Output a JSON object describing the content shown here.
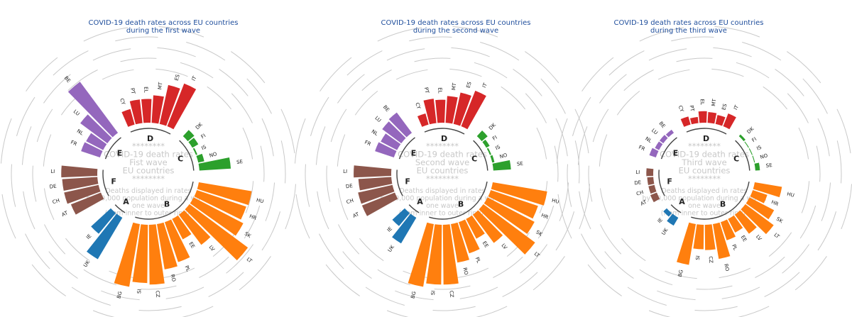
{
  "chart_data": [
    {
      "type": "radial-bar",
      "title_lines": [
        "COVID-19 death rates across EU countries",
        "during the first wave"
      ],
      "center_lines": [
        "********",
        "COVID-19 death rates",
        "Fist wave",
        "EU countries",
        "********"
      ],
      "note_lines": [
        "Deaths displayed in rates",
        "by 10,000 population during a wave,",
        "one wave",
        "(from inner to outer ring)."
      ],
      "groups": [
        {
          "name": "A",
          "color": "#1f77b4",
          "countries": [
            {
              "code": "UK",
              "value": 6.3
            },
            {
              "code": "IE",
              "value": 3.5
            }
          ]
        },
        {
          "name": "F",
          "color": "#8c564b",
          "countries": [
            {
              "code": "AT",
              "value": 4.2
            },
            {
              "code": "CH",
              "value": 4.6
            },
            {
              "code": "DE",
              "value": 4.6
            },
            {
              "code": "LI",
              "value": 4.7
            }
          ]
        },
        {
          "name": "E",
          "color": "#9467bd",
          "countries": [
            {
              "code": "FR",
              "value": 2.6
            },
            {
              "code": "NL",
              "value": 2.5
            },
            {
              "code": "LU",
              "value": 4.4
            },
            {
              "code": "BE",
              "value": 8.3
            }
          ]
        },
        {
          "name": "D",
          "color": "#d62728",
          "countries": [
            {
              "code": "CY",
              "value": 2.1
            },
            {
              "code": "PT",
              "value": 3.1
            },
            {
              "code": "EL",
              "value": 3.1
            },
            {
              "code": "MT",
              "value": 3.6
            },
            {
              "code": "ES",
              "value": 5.2
            },
            {
              "code": "IT",
              "value": 6.0
            }
          ]
        },
        {
          "name": "C",
          "color": "#2ca02c",
          "countries": [
            {
              "code": "DK",
              "value": 1.1
            },
            {
              "code": "FI",
              "value": 0.9
            },
            {
              "code": "IS",
              "value": 0.2
            },
            {
              "code": "NO",
              "value": 0.8
            },
            {
              "code": "SE",
              "value": 4.1
            }
          ]
        },
        {
          "name": "B",
          "color": "#ff7f0e",
          "countries": [
            {
              "code": "HU",
              "value": 7.0
            },
            {
              "code": "HR",
              "value": 6.8
            },
            {
              "code": "SK",
              "value": 7.3
            },
            {
              "code": "LT",
              "value": 9.5
            },
            {
              "code": "LV",
              "value": 4.9
            },
            {
              "code": "EE",
              "value": 3.0
            },
            {
              "code": "PL",
              "value": 5.5
            },
            {
              "code": "RO",
              "value": 6.0
            },
            {
              "code": "CZ",
              "value": 7.8
            },
            {
              "code": "SI",
              "value": 7.6
            },
            {
              "code": "BG",
              "value": 8.3
            }
          ]
        }
      ]
    },
    {
      "type": "radial-bar",
      "title_lines": [
        "COVID-19 death rates across EU countries",
        "during the second wave"
      ],
      "center_lines": [
        "********",
        "COVID-19 death rates",
        "Second wave",
        "EU countries",
        "********"
      ],
      "note_lines": [
        "Deaths displayed in rates",
        "by 10,000 population during a wave,",
        "one wave",
        "(from inner to outer ring)."
      ],
      "groups": [
        {
          "name": "A",
          "color": "#1f77b4",
          "countries": [
            {
              "code": "UK",
              "value": 3.9
            },
            {
              "code": "IE",
              "value": 2.2
            }
          ]
        },
        {
          "name": "F",
          "color": "#8c564b",
          "countries": [
            {
              "code": "AT",
              "value": 4.6
            },
            {
              "code": "CH",
              "value": 4.6
            },
            {
              "code": "DE",
              "value": 4.3
            },
            {
              "code": "LI",
              "value": 4.9
            }
          ]
        },
        {
          "name": "E",
          "color": "#9467bd",
          "countries": [
            {
              "code": "FR",
              "value": 2.6
            },
            {
              "code": "NL",
              "value": 2.4
            },
            {
              "code": "LU",
              "value": 3.1
            },
            {
              "code": "BE",
              "value": 3.3
            }
          ]
        },
        {
          "name": "D",
          "color": "#d62728",
          "countries": [
            {
              "code": "CY",
              "value": 1.5
            },
            {
              "code": "PT",
              "value": 3.2
            },
            {
              "code": "EL",
              "value": 3.0
            },
            {
              "code": "MT",
              "value": 3.5
            },
            {
              "code": "ES",
              "value": 4.2
            },
            {
              "code": "IT",
              "value": 5.0
            }
          ]
        },
        {
          "name": "C",
          "color": "#2ca02c",
          "countries": [
            {
              "code": "DK",
              "value": 1.0
            },
            {
              "code": "FI",
              "value": 0.5
            },
            {
              "code": "IS",
              "value": 0.2
            },
            {
              "code": "NO",
              "value": 0.3
            },
            {
              "code": "SE",
              "value": 2.3
            }
          ]
        },
        {
          "name": "B",
          "color": "#ff7f0e",
          "countries": [
            {
              "code": "HU",
              "value": 7.2
            },
            {
              "code": "HR",
              "value": 6.5
            },
            {
              "code": "SK",
              "value": 6.9
            },
            {
              "code": "LT",
              "value": 8.4
            },
            {
              "code": "LV",
              "value": 4.6
            },
            {
              "code": "EE",
              "value": 2.9
            },
            {
              "code": "PL",
              "value": 4.3
            },
            {
              "code": "RO",
              "value": 5.1
            },
            {
              "code": "CZ",
              "value": 7.8
            },
            {
              "code": "SI",
              "value": 7.8
            },
            {
              "code": "BG",
              "value": 8.3
            }
          ]
        }
      ]
    },
    {
      "type": "radial-bar",
      "title_lines": [
        "COVID-19 death rates across EU countries",
        "during the third wave"
      ],
      "center_lines": [
        "********",
        "COVID-19 death rates",
        "Third wave",
        "EU countries",
        "********"
      ],
      "note_lines": [
        "Deaths displayed in rates",
        "by 10,000 population during a wave,",
        "one wave",
        "(from inner to outer ring)."
      ],
      "groups": [
        {
          "name": "A",
          "color": "#1f77b4",
          "countries": [
            {
              "code": "UK",
              "value": 1.2
            },
            {
              "code": "IE",
              "value": 0.6
            }
          ]
        },
        {
          "name": "F",
          "color": "#8c564b",
          "countries": [
            {
              "code": "AT",
              "value": 0.9
            },
            {
              "code": "CH",
              "value": 0.8
            },
            {
              "code": "DE",
              "value": 0.8
            },
            {
              "code": "LI",
              "value": 0.9
            }
          ]
        },
        {
          "name": "E",
          "color": "#9467bd",
          "countries": [
            {
              "code": "FR",
              "value": 0.9
            },
            {
              "code": "NL",
              "value": 0.6
            },
            {
              "code": "LU",
              "value": 0.6
            },
            {
              "code": "BE",
              "value": 0.5
            }
          ]
        },
        {
          "name": "D",
          "color": "#d62728",
          "countries": [
            {
              "code": "CY",
              "value": 1.1
            },
            {
              "code": "PT",
              "value": 0.8
            },
            {
              "code": "EL",
              "value": 1.5
            },
            {
              "code": "MT",
              "value": 1.4
            },
            {
              "code": "ES",
              "value": 1.2
            },
            {
              "code": "IT",
              "value": 1.8
            }
          ]
        },
        {
          "name": "C",
          "color": "#2ca02c",
          "countries": [
            {
              "code": "DK",
              "value": 0.3
            },
            {
              "code": "FI",
              "value": 0.1
            },
            {
              "code": "IS",
              "value": 0.1
            },
            {
              "code": "NO",
              "value": 0.1
            },
            {
              "code": "SE",
              "value": 0.6
            }
          ]
        },
        {
          "name": "B",
          "color": "#ff7f0e",
          "countries": [
            {
              "code": "HU",
              "value": 3.6
            },
            {
              "code": "HR",
              "value": 2.0
            },
            {
              "code": "SK",
              "value": 3.6
            },
            {
              "code": "LT",
              "value": 4.6
            },
            {
              "code": "LV",
              "value": 3.1
            },
            {
              "code": "EE",
              "value": 2.0
            },
            {
              "code": "PL",
              "value": 2.5
            },
            {
              "code": "RO",
              "value": 4.6
            },
            {
              "code": "CZ",
              "value": 3.3
            },
            {
              "code": "SI",
              "value": 3.2
            },
            {
              "code": "BG",
              "value": 5.4
            }
          ]
        }
      ]
    }
  ]
}
